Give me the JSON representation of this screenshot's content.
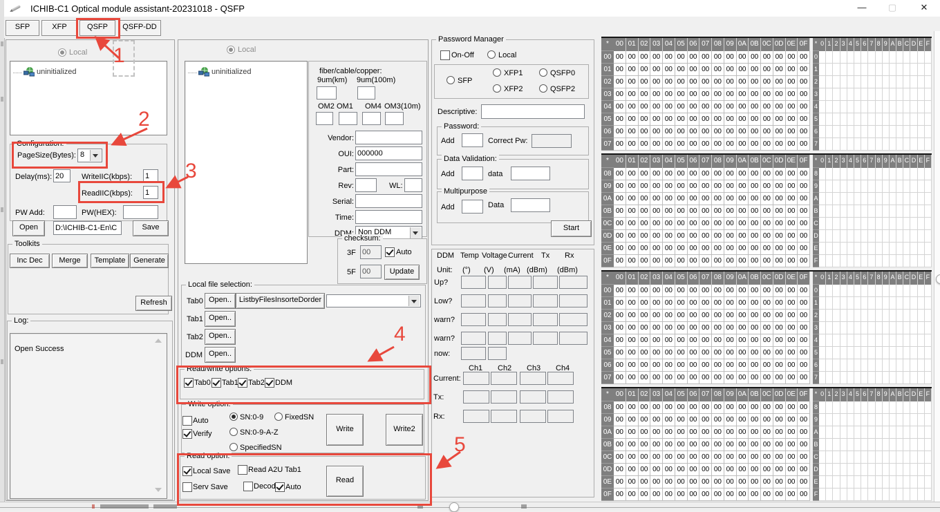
{
  "window": {
    "title": "ICHIB-C1 Optical module assistant-20231018  - QSFP",
    "controls": {
      "minimize": "—",
      "maximize": "▢",
      "close": "✕"
    }
  },
  "tabs": [
    {
      "label": "SFP"
    },
    {
      "label": "XFP"
    },
    {
      "label": "QSFP",
      "highlighted": true
    },
    {
      "label": "QSFP-DD"
    }
  ],
  "left_panel": {
    "local_radio": "Local",
    "tree_item": "uninitialized",
    "configuration": {
      "title": "Configuration:",
      "pagesize_label": "PageSize(Bytes):",
      "pagesize_value": "8",
      "delay_label": "Delay(ms):",
      "delay_value": "20",
      "writeiic_label": "WriteIIC(kbps):",
      "writeiic_value": "1",
      "readiic_label": "ReadIIC(kbps):",
      "readiic_value": "1",
      "pwadd_label": "PW Add:",
      "pwadd_value": "",
      "pwhex_label": "PW(HEX):",
      "pwhex_value": ""
    },
    "open_button": "Open",
    "file_path": "D:\\ICHIB-C1-En\\C",
    "save_button": "Save",
    "toolkits": {
      "title": "Toolkits",
      "buttons": [
        "Inc Dec",
        "Merge",
        "Template",
        "Generate"
      ],
      "refresh_button": "Refresh"
    },
    "log": {
      "title": "Log:",
      "entries": [
        "Open Success"
      ]
    }
  },
  "middle_panel": {
    "local_radio": "Local",
    "tree_item": "uninitialized",
    "module_info": {
      "fiber_label": "fiber/cable/copper:",
      "distance_labels": [
        "9um(km)",
        "9um(100m)"
      ],
      "om_labels": [
        "OM2",
        "OM1",
        "OM4",
        "OM3(10m)"
      ],
      "fields": [
        {
          "label": "Vendor:",
          "value": ""
        },
        {
          "label": "OUI:",
          "value": "000000"
        },
        {
          "label": "Part:",
          "value": ""
        },
        {
          "label": "Rev:",
          "value": ""
        },
        {
          "label": "WL:",
          "value": ""
        },
        {
          "label": "Serial:",
          "value": ""
        },
        {
          "label": "Time:",
          "value": ""
        }
      ],
      "ddm_label": "DDM:",
      "ddm_value": "Non DDM"
    },
    "checksum": {
      "title": "checksum:",
      "rows": [
        {
          "label": "3F",
          "value": "00"
        },
        {
          "label": "5F",
          "value": "00"
        }
      ],
      "auto_label": "Auto",
      "auto_checked": true,
      "update_button": "Update"
    },
    "local_file_selection": {
      "title": "Local file selection:",
      "rows": [
        {
          "label": "Tab0",
          "button": "Open.."
        },
        {
          "label": "Tab1",
          "button": "Open.."
        },
        {
          "label": "Tab2",
          "button": "Open.."
        },
        {
          "label": "DDM",
          "button": "Open.."
        }
      ],
      "list_button": "ListbyFilesInsorteDorder",
      "dropdown_value": ""
    },
    "rw_options": {
      "title": "Read/write options:",
      "checkboxes": [
        {
          "label": "Tab0",
          "checked": true
        },
        {
          "label": "Tab1",
          "checked": true
        },
        {
          "label": "Tab2",
          "checked": true
        },
        {
          "label": "DDM",
          "checked": true
        }
      ]
    },
    "write_option": {
      "title": "Write option:",
      "checkboxes": [
        {
          "label": "Auto",
          "checked": false
        },
        {
          "label": "Verify",
          "checked": true
        }
      ],
      "radios": [
        {
          "label": "SN:0-9",
          "selected": true
        },
        {
          "label": "FixedSN",
          "selected": false
        },
        {
          "label": "SN:0-9-A-Z",
          "selected": false
        },
        {
          "label": "SpecifiedSN",
          "selected": false
        }
      ],
      "write_button": "Write",
      "write2_button": "Write2"
    },
    "read_option": {
      "title": "Read option:",
      "checkboxes": [
        {
          "label": "Local Save",
          "checked": true
        },
        {
          "label": "Read A2U Tab1",
          "checked": false
        },
        {
          "label": "Serv Save",
          "checked": false
        },
        {
          "label": "Decode",
          "checked": false
        },
        {
          "label": "Auto",
          "checked": true
        }
      ],
      "read_button": "Read"
    }
  },
  "password_manager": {
    "title": "Password Manager",
    "onoff_label": "On-Off",
    "onoff_checked": false,
    "local_label": "Local",
    "module_radios": [
      "SFP",
      "XFP1",
      "XFP2",
      "QSFP0",
      "QSFP2"
    ],
    "descriptive_label": "Descriptive:",
    "descriptive_value": "",
    "password": {
      "title": "Password:",
      "add_label": "Add",
      "add_value": "",
      "correct_label": "Correct Pw:",
      "correct_value": ""
    },
    "data_validation": {
      "title": "Data Validation:",
      "add_label": "Add",
      "add_value": "",
      "data_label": "data",
      "data_value": ""
    },
    "multipurpose": {
      "title": "Multipurpose",
      "add_label": "Add",
      "add_value": "",
      "data_label": "Data",
      "data_value": ""
    },
    "start_button": "Start"
  },
  "ddm_panel": {
    "title": "DDM",
    "col_headers": [
      "Temp",
      "Voltage",
      "Current",
      "Tx",
      "Rx"
    ],
    "unit_label": "Unit:",
    "unit_headers": [
      "(°)",
      "(V)",
      "(mA)",
      "(dBm)",
      "(dBm)"
    ],
    "threshold_rows": [
      {
        "label": "Up?",
        "boxes": 5
      },
      {
        "label": "Low?",
        "boxes": 5
      },
      {
        "label": "warn?",
        "boxes": 5
      },
      {
        "label": "warn?",
        "boxes": 5
      },
      {
        "label": "now:",
        "boxes": 2
      }
    ],
    "ch_headers": [
      "Ch1",
      "Ch2",
      "Ch3",
      "Ch4"
    ],
    "ch_rows": [
      {
        "label": "Current:"
      },
      {
        "label": "Tx:"
      },
      {
        "label": "Rx:"
      }
    ]
  },
  "hex_grid": {
    "corner": "*",
    "col_headers": [
      "00",
      "01",
      "02",
      "03",
      "04",
      "05",
      "06",
      "07",
      "08",
      "09",
      "0A",
      "0B",
      "0C",
      "0D",
      "0E",
      "0F"
    ],
    "ascii_col_headers": [
      "0",
      "1",
      "2",
      "3",
      "4",
      "5",
      "6",
      "7",
      "8",
      "9",
      "A",
      "B",
      "C",
      "D",
      "E",
      "F"
    ],
    "blocks": [
      {
        "row_labels": [
          "00",
          "01",
          "02",
          "03",
          "04",
          "05",
          "06",
          "07"
        ],
        "ascii_row_labels": [
          "0",
          "1",
          "2",
          "3",
          "4",
          "5",
          "6",
          "7"
        ],
        "cell_value": "00",
        "ascii_cell_value": ""
      },
      {
        "row_labels": [
          "08",
          "09",
          "0A",
          "0B",
          "0C",
          "0D",
          "0E",
          "0F"
        ],
        "ascii_row_labels": [
          "8",
          "9",
          "A",
          "B",
          "C",
          "D",
          "E",
          "F"
        ],
        "cell_value": "00",
        "ascii_cell_value": ""
      },
      {
        "row_labels": [
          "00",
          "01",
          "02",
          "03",
          "04",
          "05",
          "06",
          "07"
        ],
        "ascii_row_labels": [
          "0",
          "1",
          "2",
          "3",
          "4",
          "5",
          "6",
          "7"
        ],
        "cell_value": "00",
        "ascii_cell_value": ""
      },
      {
        "row_labels": [
          "08",
          "09",
          "0A",
          "0B",
          "0C",
          "0D",
          "0E",
          "0F"
        ],
        "ascii_row_labels": [
          "8",
          "9",
          "A",
          "B",
          "C",
          "D",
          "E",
          "F"
        ],
        "cell_value": "00",
        "ascii_cell_value": ""
      }
    ]
  },
  "annotations": {
    "color": "#e8483c",
    "numbers": [
      "1",
      "2",
      "3",
      "4",
      "5"
    ]
  }
}
